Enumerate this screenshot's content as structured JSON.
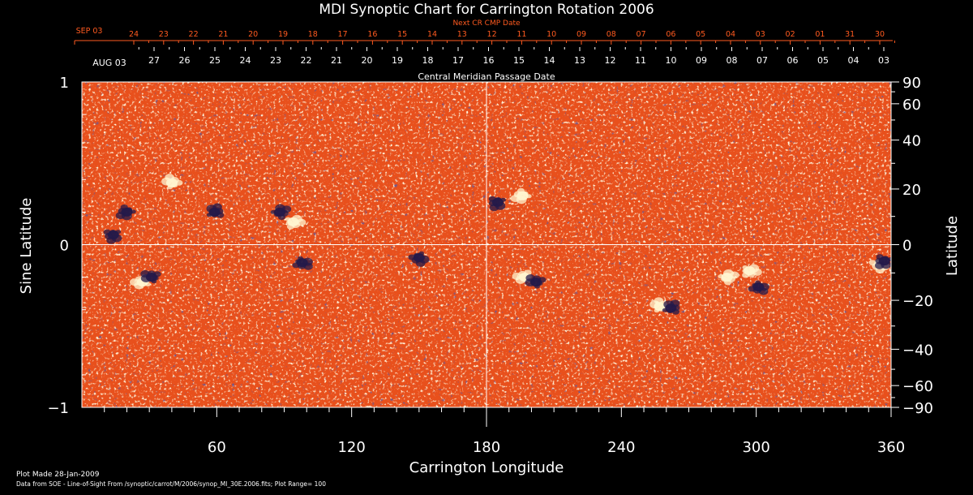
{
  "chart_data": {
    "type": "heatmap",
    "title": "MDI Synoptic Chart for Carrington Rotation 2006",
    "top_axis_label": "Next CR CMP Date",
    "top_axis_first_label": "SEP 03",
    "top_axis_ticks": [
      "24",
      "23",
      "22",
      "21",
      "20",
      "19",
      "18",
      "17",
      "16",
      "15",
      "14",
      "13",
      "12",
      "11",
      "10",
      "09",
      "08",
      "07",
      "06",
      "05",
      "04",
      "03",
      "02",
      "01",
      "31",
      "30"
    ],
    "mid_axis_label": "Central Meridian Passage Date",
    "mid_axis_first_label": "AUG 03",
    "mid_axis_ticks": [
      "27",
      "26",
      "25",
      "24",
      "23",
      "22",
      "21",
      "20",
      "19",
      "18",
      "17",
      "16",
      "15",
      "14",
      "13",
      "12",
      "11",
      "10",
      "09",
      "08",
      "07",
      "06",
      "05",
      "04",
      "03"
    ],
    "xlabel": "Carrington Longitude",
    "xlim": [
      0,
      360
    ],
    "xticks": [
      60,
      120,
      180,
      240,
      300,
      360
    ],
    "ylabel_left": "Sine Latitude",
    "ylim_left": [
      -1,
      1
    ],
    "yticks_left": [
      {
        "value": 1,
        "label": "1"
      },
      {
        "value": 0,
        "label": "0"
      },
      {
        "value": -1,
        "label": "−1"
      }
    ],
    "ylabel_right": "Latitude",
    "yticks_right": [
      {
        "value": 90,
        "label": "90"
      },
      {
        "value": 60,
        "label": "60"
      },
      {
        "value": 40,
        "label": "40"
      },
      {
        "value": 20,
        "label": "20"
      },
      {
        "value": 0,
        "label": "0"
      },
      {
        "value": -20,
        "label": "−20"
      },
      {
        "value": -40,
        "label": "−40"
      },
      {
        "value": -60,
        "label": "−60"
      },
      {
        "value": -90,
        "label": "−90"
      }
    ],
    "grid_lines": {
      "longitude": 180,
      "sine_latitude": 0
    },
    "plot_range": 100,
    "colors": {
      "background": "#000000",
      "map_base": "#e8501c",
      "positive_polarity": "#fff6d0",
      "negative_polarity": "#241a4a",
      "axes": "#ffffff",
      "top_axis": "#ff5a1f"
    },
    "active_regions": [
      {
        "lon": 14,
        "sinlat": 0.06,
        "polarity": "negative"
      },
      {
        "lon": 20,
        "sinlat": 0.2,
        "polarity": "negative"
      },
      {
        "lon": 27,
        "sinlat": -0.23,
        "polarity": "positive"
      },
      {
        "lon": 31,
        "sinlat": -0.2,
        "polarity": "negative"
      },
      {
        "lon": 40,
        "sinlat": 0.38,
        "polarity": "positive"
      },
      {
        "lon": 59,
        "sinlat": 0.2,
        "polarity": "negative"
      },
      {
        "lon": 88,
        "sinlat": 0.2,
        "polarity": "negative"
      },
      {
        "lon": 94,
        "sinlat": 0.14,
        "polarity": "positive"
      },
      {
        "lon": 98,
        "sinlat": -0.11,
        "polarity": "negative"
      },
      {
        "lon": 150,
        "sinlat": -0.08,
        "polarity": "negative"
      },
      {
        "lon": 185,
        "sinlat": 0.26,
        "polarity": "negative"
      },
      {
        "lon": 196,
        "sinlat": 0.3,
        "polarity": "positive"
      },
      {
        "lon": 197,
        "sinlat": -0.2,
        "polarity": "positive"
      },
      {
        "lon": 202,
        "sinlat": -0.23,
        "polarity": "negative"
      },
      {
        "lon": 257,
        "sinlat": -0.38,
        "polarity": "positive"
      },
      {
        "lon": 262,
        "sinlat": -0.39,
        "polarity": "negative"
      },
      {
        "lon": 287,
        "sinlat": -0.2,
        "polarity": "positive"
      },
      {
        "lon": 297,
        "sinlat": -0.16,
        "polarity": "positive"
      },
      {
        "lon": 301,
        "sinlat": -0.26,
        "polarity": "negative"
      },
      {
        "lon": 355,
        "sinlat": -0.12,
        "polarity": "positive"
      },
      {
        "lon": 357,
        "sinlat": -0.1,
        "polarity": "negative"
      }
    ]
  },
  "footer": {
    "plot_made": "Plot Made 28-Jan-2009",
    "data_from": "Data from SOE - Line-of-Sight From /synoptic/carrot/M/2006/synop_Ml_30E.2006.fits; Plot Range=  100"
  }
}
